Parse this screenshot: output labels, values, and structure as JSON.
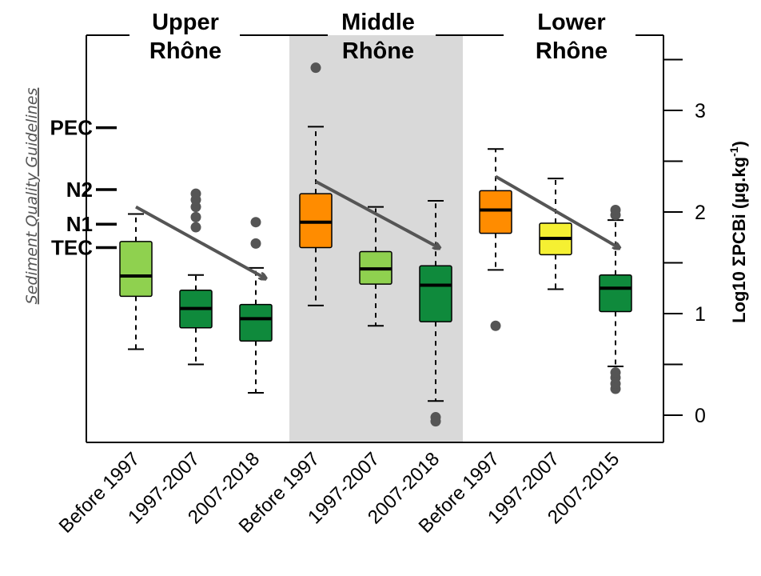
{
  "chart_data": {
    "type": "box",
    "ylabel": "Log10 ΣPCBi (µg.kg-1)",
    "ylabel_main": "Log10 ΣPCBi (µg.kg",
    "ylabel_sup": "-1",
    "ylabel_end": ")",
    "ylim": [
      -0.3,
      3.7
    ],
    "yticks": [
      0,
      0.5,
      1,
      1.5,
      2,
      2.5,
      3,
      3.5
    ],
    "ytick_labels": [
      {
        "value": 0,
        "label": "0"
      },
      {
        "value": 1,
        "label": "1"
      },
      {
        "value": 2,
        "label": "2"
      },
      {
        "value": 3,
        "label": "3"
      }
    ],
    "guidelines_title": "Sediment Quality Guidelines",
    "guidelines": [
      {
        "name": "PEC",
        "value": 2.83
      },
      {
        "name": "N2",
        "value": 2.22
      },
      {
        "name": "N1",
        "value": 1.88
      },
      {
        "name": "TEC",
        "value": 1.65
      }
    ],
    "regions": [
      {
        "line1": "Upper",
        "line2": "Rhône",
        "shaded": false,
        "from": 0,
        "to": 2
      },
      {
        "line1": "Middle",
        "line2": "Rhône",
        "shaded": true,
        "from": 3,
        "to": 5
      },
      {
        "line1": "Lower",
        "line2": "Rhône",
        "shaded": false,
        "from": 6,
        "to": 8
      }
    ],
    "colors": {
      "light_green": "#8fd14f",
      "dark_green": "#0f8a3c",
      "orange": "#ff8c00",
      "yellow": "#f5f032",
      "shade": "#d9d9d9",
      "arrow": "#555555",
      "outlier": "#555555"
    },
    "boxes": [
      {
        "label": "Before 1997",
        "color": "light_green",
        "whisker_low": 0.65,
        "q1": 1.17,
        "median": 1.37,
        "q3": 1.71,
        "whisker_high": 1.98,
        "outliers": []
      },
      {
        "label": "1997-2007",
        "color": "dark_green",
        "whisker_low": 0.5,
        "q1": 0.86,
        "median": 1.05,
        "q3": 1.23,
        "whisker_high": 1.38,
        "outliers": [
          1.85,
          1.95,
          2.05,
          2.12,
          2.18
        ]
      },
      {
        "label": "2007-2018",
        "color": "dark_green",
        "whisker_low": 0.22,
        "q1": 0.73,
        "median": 0.95,
        "q3": 1.09,
        "whisker_high": 1.45,
        "outliers": [
          1.69,
          1.9
        ]
      },
      {
        "label": "Before 1997",
        "color": "orange",
        "whisker_low": 1.08,
        "q1": 1.65,
        "median": 1.9,
        "q3": 2.18,
        "whisker_high": 2.84,
        "outliers": [
          3.42
        ]
      },
      {
        "label": "1997-2007",
        "color": "light_green",
        "whisker_low": 0.88,
        "q1": 1.29,
        "median": 1.44,
        "q3": 1.61,
        "whisker_high": 2.05,
        "outliers": []
      },
      {
        "label": "2007-2018",
        "color": "dark_green",
        "whisker_low": 0.14,
        "q1": 0.92,
        "median": 1.28,
        "q3": 1.47,
        "whisker_high": 2.11,
        "outliers": [
          -0.02,
          -0.06
        ]
      },
      {
        "label": "Before 1997",
        "color": "orange",
        "whisker_low": 1.43,
        "q1": 1.79,
        "median": 2.02,
        "q3": 2.21,
        "whisker_high": 2.62,
        "outliers": [
          0.88
        ]
      },
      {
        "label": "1997-2007",
        "color": "yellow",
        "whisker_low": 1.24,
        "q1": 1.58,
        "median": 1.74,
        "q3": 1.89,
        "whisker_high": 2.33,
        "outliers": []
      },
      {
        "label": "2007-2015",
        "color": "dark_green",
        "whisker_low": 0.48,
        "q1": 1.02,
        "median": 1.25,
        "q3": 1.38,
        "whisker_high": 1.92,
        "outliers": [
          0.26,
          0.31,
          0.37,
          0.42,
          1.97,
          2.02
        ]
      }
    ],
    "trend_arrows": [
      {
        "from": [
          0,
          2.05
        ],
        "to": [
          2.15,
          1.35
        ]
      },
      {
        "from": [
          3,
          2.3
        ],
        "to": [
          5.05,
          1.65
        ]
      },
      {
        "from": [
          6,
          2.35
        ],
        "to": [
          8.05,
          1.65
        ]
      }
    ]
  }
}
